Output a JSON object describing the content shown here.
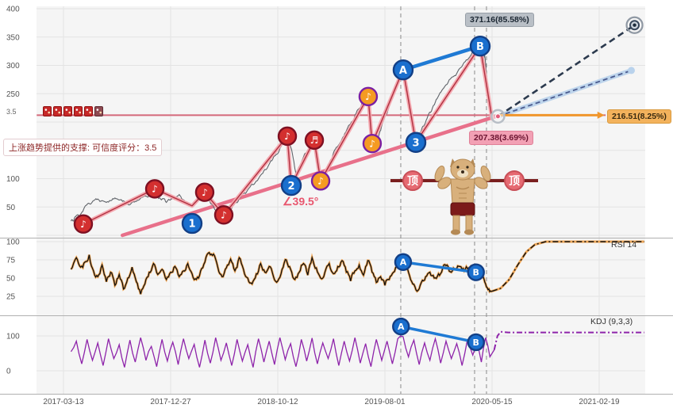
{
  "colors": {
    "panel_bg": "#f5f5f5",
    "grid": "#e3e3e3",
    "separator": "#b0b0b0",
    "price_line": "#60646a",
    "wave_outer": "#f4a6ae",
    "wave_core": "#b03040",
    "trend": "#e8708a",
    "level": "#d4687a",
    "marker_red": "#d32f2f",
    "marker_red_ring": "#7e1022",
    "marker_orange": "#f59b22",
    "marker_orange_ring": "#7b1fa2",
    "marker_blue": "#1a6fce",
    "marker_blue_ring": "#123f86",
    "ab_line": "#1f7ad4",
    "proj_navy": "#2c3a4e",
    "proj_lightblue": "#b9d2ec",
    "proj_orange": "#f0962c",
    "rsi_line": "#111111",
    "rsi_glow": "#f0a048",
    "kdj_line": "#8e24aa",
    "event_line": "#8a8a8a",
    "topline": "#7a1f1f"
  },
  "chart_data": {
    "type": "line",
    "x_ticks": [
      "2017-03-13",
      "2017-12-27",
      "2018-10-12",
      "2019-08-01",
      "2020-05-15",
      "2021-02-19"
    ],
    "main": {
      "ylim": [
        0,
        420
      ],
      "y_ticks": [
        400,
        350,
        300,
        250,
        100,
        50
      ],
      "support_note": "上涨趋势提供的支撑: 可信度评分：3.5",
      "rating": "3.5",
      "angle_label": "∠39.5°",
      "top_badge": "顶",
      "current_label": "207.38(3.69%)",
      "price": [
        [
          0.07,
          25
        ],
        [
          0.12,
          35
        ],
        [
          0.18,
          42
        ],
        [
          0.25,
          55
        ],
        [
          0.32,
          64
        ],
        [
          0.4,
          58
        ],
        [
          0.48,
          66
        ],
        [
          0.55,
          60
        ],
        [
          0.62,
          54
        ],
        [
          0.7,
          62
        ],
        [
          0.78,
          68
        ],
        [
          0.85,
          80
        ],
        [
          0.9,
          66
        ],
        [
          0.96,
          58
        ],
        [
          1.02,
          66
        ],
        [
          1.08,
          72
        ],
        [
          1.14,
          58
        ],
        [
          1.2,
          52
        ],
        [
          1.26,
          62
        ],
        [
          1.32,
          74
        ],
        [
          1.38,
          55
        ],
        [
          1.44,
          42
        ],
        [
          1.5,
          38
        ],
        [
          1.58,
          52
        ],
        [
          1.66,
          70
        ],
        [
          1.74,
          85
        ],
        [
          1.82,
          100
        ],
        [
          1.9,
          118
        ],
        [
          1.97,
          140
        ],
        [
          2.04,
          160
        ],
        [
          2.09,
          174
        ],
        [
          2.13,
          150
        ],
        [
          2.17,
          108
        ],
        [
          2.22,
          128
        ],
        [
          2.28,
          150
        ],
        [
          2.33,
          166
        ],
        [
          2.37,
          120
        ],
        [
          2.41,
          98
        ],
        [
          2.47,
          125
        ],
        [
          2.53,
          150
        ],
        [
          2.6,
          170
        ],
        [
          2.67,
          195
        ],
        [
          2.74,
          220
        ],
        [
          2.8,
          238
        ],
        [
          2.84,
          246
        ],
        [
          2.88,
          176
        ],
        [
          2.92,
          163
        ],
        [
          2.96,
          185
        ],
        [
          3.02,
          215
        ],
        [
          3.08,
          250
        ],
        [
          3.13,
          275
        ],
        [
          3.17,
          293
        ],
        [
          3.21,
          255
        ],
        [
          3.25,
          210
        ],
        [
          3.29,
          166
        ],
        [
          3.34,
          185
        ],
        [
          3.4,
          210
        ],
        [
          3.47,
          235
        ],
        [
          3.54,
          258
        ],
        [
          3.62,
          278
        ],
        [
          3.7,
          295
        ],
        [
          3.78,
          312
        ],
        [
          3.85,
          325
        ],
        [
          3.89,
          334
        ],
        [
          3.91,
          300
        ],
        [
          3.93,
          318
        ],
        [
          3.95,
          280
        ],
        [
          3.97,
          245
        ],
        [
          3.99,
          220
        ],
        [
          4.0,
          207
        ]
      ],
      "wave": [
        [
          0.185,
          20
        ],
        [
          0.852,
          82
        ],
        [
          1.2,
          52
        ],
        [
          1.318,
          76
        ],
        [
          1.496,
          36
        ],
        [
          2.089,
          175
        ],
        [
          2.126,
          88
        ],
        [
          2.341,
          168
        ],
        [
          2.4,
          96
        ],
        [
          2.844,
          245
        ],
        [
          2.881,
          162
        ],
        [
          3.17,
          292
        ],
        [
          3.289,
          164
        ],
        [
          3.889,
          334
        ],
        [
          4.0,
          206
        ]
      ],
      "trend_line": {
        "from": [
          0.55,
          0
        ],
        "to": [
          4.07,
          212
        ]
      },
      "level_line": {
        "value": 212,
        "from_f": -0.25,
        "to_f": 5.06
      },
      "ab_line": [
        [
          3.17,
          292
        ],
        [
          3.889,
          334
        ]
      ],
      "event_lines_f": [
        3.148,
        3.837,
        3.948
      ],
      "note_markers": [
        {
          "f": 0.185,
          "v": 20,
          "color": "red",
          "glyph": "♪"
        },
        {
          "f": 0.852,
          "v": 82,
          "color": "red",
          "glyph": "♪"
        },
        {
          "f": 1.318,
          "v": 76,
          "color": "red",
          "glyph": "♪"
        },
        {
          "f": 1.496,
          "v": 36,
          "color": "red",
          "glyph": "♪"
        },
        {
          "f": 2.089,
          "v": 175,
          "color": "red",
          "glyph": "♪"
        },
        {
          "f": 2.341,
          "v": 168,
          "color": "red",
          "glyph": "♬"
        },
        {
          "f": 2.4,
          "v": 96,
          "color": "orange",
          "glyph": "♪"
        },
        {
          "f": 2.844,
          "v": 245,
          "color": "orange",
          "glyph": "♪"
        },
        {
          "f": 2.881,
          "v": 162,
          "color": "orange",
          "glyph": "♪"
        }
      ],
      "wave_labels": [
        {
          "f": 1.2,
          "v": 21,
          "text": "1"
        },
        {
          "f": 2.126,
          "v": 88,
          "text": "2"
        },
        {
          "f": 3.289,
          "v": 164,
          "text": "3"
        },
        {
          "f": 3.17,
          "v": 292,
          "text": "A"
        },
        {
          "f": 3.889,
          "v": 334,
          "text": "B"
        }
      ],
      "projections": {
        "upper": {
          "label": "371.16(85.58%)",
          "from": [
            4.055,
            210
          ],
          "to": [
            5.33,
            371
          ]
        },
        "mid": {
          "from": [
            4.055,
            210
          ],
          "to": [
            5.3,
            291
          ]
        },
        "flat": {
          "label": "216.51(8.25%)",
          "level": 212,
          "from_f": 4.055,
          "to_f": 5.05
        }
      }
    },
    "rsi": {
      "label": "RSI 14",
      "y_ticks": [
        100,
        75,
        50,
        25
      ],
      "series": [
        [
          0.07,
          62
        ],
        [
          0.12,
          78
        ],
        [
          0.16,
          65
        ],
        [
          0.2,
          72
        ],
        [
          0.24,
          82
        ],
        [
          0.28,
          60
        ],
        [
          0.32,
          52
        ],
        [
          0.36,
          68
        ],
        [
          0.4,
          45
        ],
        [
          0.44,
          58
        ],
        [
          0.48,
          40
        ],
        [
          0.52,
          55
        ],
        [
          0.56,
          35
        ],
        [
          0.6,
          50
        ],
        [
          0.64,
          65
        ],
        [
          0.68,
          45
        ],
        [
          0.72,
          28
        ],
        [
          0.76,
          42
        ],
        [
          0.8,
          58
        ],
        [
          0.84,
          70
        ],
        [
          0.88,
          55
        ],
        [
          0.92,
          62
        ],
        [
          0.96,
          48
        ],
        [
          1.0,
          58
        ],
        [
          1.04,
          66
        ],
        [
          1.08,
          52
        ],
        [
          1.12,
          60
        ],
        [
          1.16,
          70
        ],
        [
          1.2,
          56
        ],
        [
          1.24,
          48
        ],
        [
          1.28,
          60
        ],
        [
          1.32,
          72
        ],
        [
          1.36,
          85
        ],
        [
          1.4,
          83
        ],
        [
          1.44,
          65
        ],
        [
          1.48,
          52
        ],
        [
          1.52,
          64
        ],
        [
          1.56,
          76
        ],
        [
          1.6,
          60
        ],
        [
          1.64,
          78
        ],
        [
          1.68,
          62
        ],
        [
          1.72,
          50
        ],
        [
          1.76,
          42
        ],
        [
          1.8,
          56
        ],
        [
          1.84,
          70
        ],
        [
          1.88,
          58
        ],
        [
          1.92,
          66
        ],
        [
          1.96,
          52
        ],
        [
          2.0,
          46
        ],
        [
          2.04,
          62
        ],
        [
          2.08,
          75
        ],
        [
          2.12,
          62
        ],
        [
          2.16,
          48
        ],
        [
          2.2,
          58
        ],
        [
          2.24,
          70
        ],
        [
          2.28,
          54
        ],
        [
          2.32,
          78
        ],
        [
          2.36,
          64
        ],
        [
          2.4,
          50
        ],
        [
          2.44,
          58
        ],
        [
          2.48,
          70
        ],
        [
          2.52,
          56
        ],
        [
          2.56,
          66
        ],
        [
          2.6,
          74
        ],
        [
          2.64,
          58
        ],
        [
          2.68,
          46
        ],
        [
          2.72,
          60
        ],
        [
          2.76,
          68
        ],
        [
          2.8,
          54
        ],
        [
          2.84,
          74
        ],
        [
          2.88,
          58
        ],
        [
          2.92,
          44
        ],
        [
          2.96,
          52
        ],
        [
          3.0,
          40
        ],
        [
          3.04,
          48
        ],
        [
          3.08,
          58
        ],
        [
          3.12,
          66
        ],
        [
          3.17,
          72
        ],
        [
          3.22,
          58
        ],
        [
          3.26,
          42
        ],
        [
          3.3,
          32
        ],
        [
          3.34,
          44
        ],
        [
          3.38,
          52
        ],
        [
          3.42,
          58
        ],
        [
          3.46,
          50
        ],
        [
          3.5,
          56
        ],
        [
          3.54,
          64
        ],
        [
          3.58,
          68
        ],
        [
          3.62,
          58
        ],
        [
          3.66,
          62
        ],
        [
          3.7,
          66
        ],
        [
          3.74,
          60
        ],
        [
          3.78,
          64
        ],
        [
          3.82,
          60
        ],
        [
          3.85,
          58
        ],
        [
          3.88,
          62
        ],
        [
          3.91,
          55
        ],
        [
          3.94,
          42
        ],
        [
          3.97,
          35
        ],
        [
          4.0,
          32
        ]
      ],
      "projection": [
        [
          4.0,
          32
        ],
        [
          4.08,
          36
        ],
        [
          4.16,
          48
        ],
        [
          4.24,
          68
        ],
        [
          4.32,
          86
        ],
        [
          4.4,
          96
        ],
        [
          4.5,
          100
        ],
        [
          4.6,
          100
        ],
        [
          5.42,
          100
        ]
      ],
      "markers": [
        {
          "f": 3.17,
          "v": 72,
          "text": "A"
        },
        {
          "f": 3.85,
          "v": 58,
          "text": "B"
        }
      ]
    },
    "kdj": {
      "label": "KDJ (9,3,3)",
      "y_ticks": [
        100,
        0
      ],
      "series": [
        [
          0.07,
          55
        ],
        [
          0.12,
          85
        ],
        [
          0.17,
          20
        ],
        [
          0.22,
          90
        ],
        [
          0.27,
          30
        ],
        [
          0.32,
          80
        ],
        [
          0.37,
          15
        ],
        [
          0.42,
          92
        ],
        [
          0.47,
          35
        ],
        [
          0.52,
          75
        ],
        [
          0.57,
          10
        ],
        [
          0.62,
          88
        ],
        [
          0.67,
          25
        ],
        [
          0.72,
          95
        ],
        [
          0.77,
          30
        ],
        [
          0.82,
          70
        ],
        [
          0.87,
          12
        ],
        [
          0.92,
          90
        ],
        [
          0.97,
          28
        ],
        [
          1.02,
          82
        ],
        [
          1.07,
          18
        ],
        [
          1.12,
          92
        ],
        [
          1.17,
          35
        ],
        [
          1.22,
          76
        ],
        [
          1.27,
          10
        ],
        [
          1.32,
          88
        ],
        [
          1.37,
          22
        ],
        [
          1.42,
          95
        ],
        [
          1.47,
          30
        ],
        [
          1.52,
          80
        ],
        [
          1.57,
          15
        ],
        [
          1.62,
          90
        ],
        [
          1.67,
          28
        ],
        [
          1.72,
          75
        ],
        [
          1.77,
          10
        ],
        [
          1.82,
          92
        ],
        [
          1.87,
          25
        ],
        [
          1.92,
          85
        ],
        [
          1.97,
          18
        ],
        [
          2.02,
          95
        ],
        [
          2.07,
          32
        ],
        [
          2.12,
          78
        ],
        [
          2.17,
          12
        ],
        [
          2.22,
          90
        ],
        [
          2.27,
          28
        ],
        [
          2.32,
          94
        ],
        [
          2.37,
          20
        ],
        [
          2.42,
          80
        ],
        [
          2.47,
          35
        ],
        [
          2.52,
          92
        ],
        [
          2.57,
          15
        ],
        [
          2.62,
          85
        ],
        [
          2.67,
          28
        ],
        [
          2.72,
          95
        ],
        [
          2.77,
          22
        ],
        [
          2.82,
          78
        ],
        [
          2.87,
          12
        ],
        [
          2.92,
          90
        ],
        [
          2.97,
          30
        ],
        [
          3.02,
          85
        ],
        [
          3.07,
          20
        ],
        [
          3.12,
          92
        ],
        [
          3.17,
          98
        ],
        [
          3.22,
          40
        ],
        [
          3.27,
          88
        ],
        [
          3.32,
          18
        ],
        [
          3.37,
          80
        ],
        [
          3.42,
          30
        ],
        [
          3.47,
          92
        ],
        [
          3.52,
          22
        ],
        [
          3.57,
          85
        ],
        [
          3.62,
          35
        ],
        [
          3.67,
          78
        ],
        [
          3.72,
          15
        ],
        [
          3.77,
          90
        ],
        [
          3.82,
          45
        ],
        [
          3.86,
          88
        ],
        [
          3.9,
          25
        ],
        [
          3.94,
          95
        ],
        [
          3.98,
          40
        ],
        [
          4.02,
          60
        ]
      ],
      "projection": [
        [
          4.02,
          60
        ],
        [
          4.05,
          100
        ],
        [
          4.08,
          112
        ],
        [
          4.15,
          110
        ],
        [
          5.42,
          110
        ]
      ],
      "markers": [
        {
          "f": 3.15,
          "v": 127,
          "text": "A"
        },
        {
          "f": 3.85,
          "v": 82,
          "text": "B"
        }
      ]
    }
  }
}
